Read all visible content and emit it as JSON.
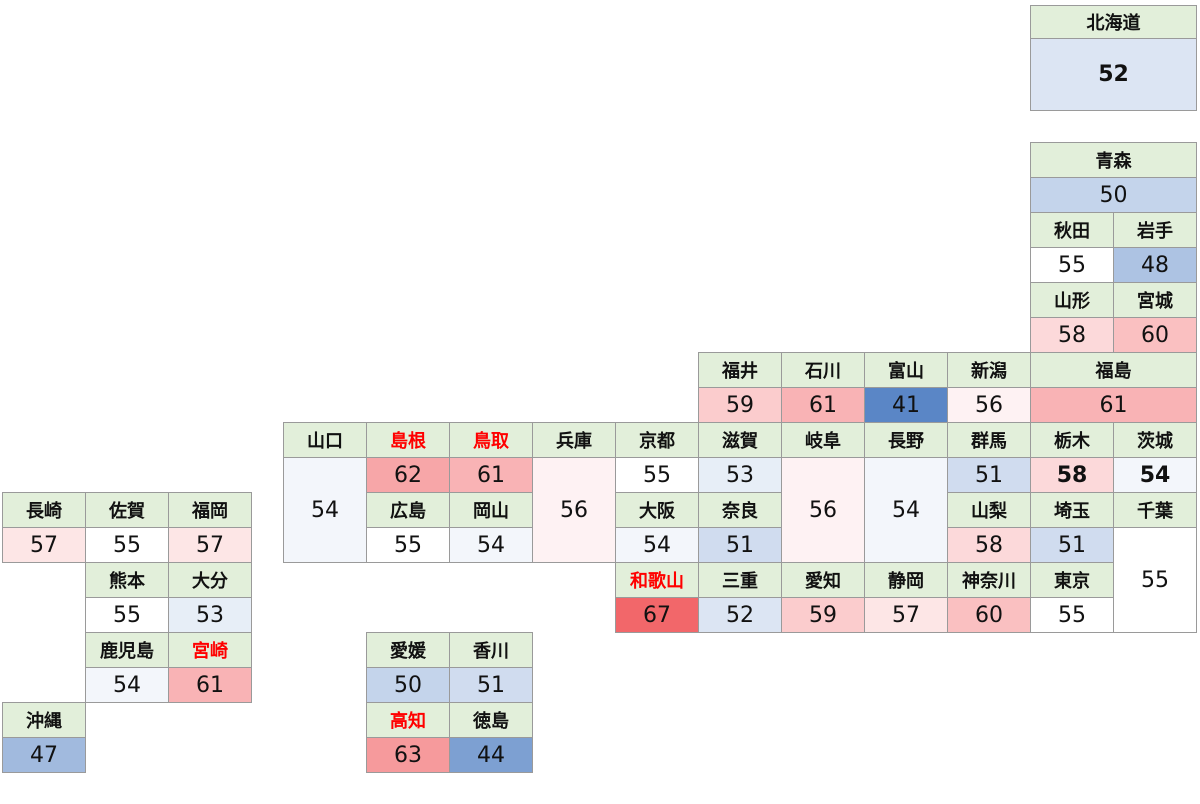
{
  "prefectures": [
    {
      "name": "北海道",
      "value": 52,
      "bold": true
    },
    {
      "name": "青森",
      "value": 50
    },
    {
      "name": "秋田",
      "value": 55
    },
    {
      "name": "岩手",
      "value": 48
    },
    {
      "name": "山形",
      "value": 58
    },
    {
      "name": "宮城",
      "value": 60
    },
    {
      "name": "福井",
      "value": 59
    },
    {
      "name": "石川",
      "value": 61
    },
    {
      "name": "富山",
      "value": 41
    },
    {
      "name": "新潟",
      "value": 56
    },
    {
      "name": "福島",
      "value": 61
    },
    {
      "name": "山口",
      "value": 54
    },
    {
      "name": "島根",
      "value": 62,
      "highlight": true
    },
    {
      "name": "鳥取",
      "value": 61,
      "highlight": true
    },
    {
      "name": "兵庫",
      "value": 56
    },
    {
      "name": "京都",
      "value": 55
    },
    {
      "name": "滋賀",
      "value": 53
    },
    {
      "name": "岐阜",
      "value": 56
    },
    {
      "name": "長野",
      "value": 54
    },
    {
      "name": "群馬",
      "value": 51
    },
    {
      "name": "栃木",
      "value": 58,
      "bold": true
    },
    {
      "name": "茨城",
      "value": 54,
      "bold": true
    },
    {
      "name": "広島",
      "value": 55
    },
    {
      "name": "岡山",
      "value": 54
    },
    {
      "name": "大阪",
      "value": 54
    },
    {
      "name": "奈良",
      "value": 51
    },
    {
      "name": "山梨",
      "value": 58
    },
    {
      "name": "埼玉",
      "value": 51
    },
    {
      "name": "千葉",
      "value": 55
    },
    {
      "name": "和歌山",
      "value": 67,
      "highlight": true
    },
    {
      "name": "三重",
      "value": 52
    },
    {
      "name": "愛知",
      "value": 59
    },
    {
      "name": "静岡",
      "value": 57
    },
    {
      "name": "神奈川",
      "value": 60
    },
    {
      "name": "東京",
      "value": 55
    },
    {
      "name": "長崎",
      "value": 57
    },
    {
      "name": "佐賀",
      "value": 55
    },
    {
      "name": "福岡",
      "value": 57
    },
    {
      "name": "熊本",
      "value": 55
    },
    {
      "name": "大分",
      "value": 53
    },
    {
      "name": "鹿児島",
      "value": 54
    },
    {
      "name": "宮崎",
      "value": 61,
      "highlight": true
    },
    {
      "name": "沖縄",
      "value": 47
    },
    {
      "name": "愛媛",
      "value": 50
    },
    {
      "name": "香川",
      "value": 51
    },
    {
      "name": "高知",
      "value": 63,
      "highlight": true
    },
    {
      "name": "徳島",
      "value": 44
    }
  ],
  "colors": {
    "low": "#5a86c6",
    "mid": "#ffffff",
    "high": "#f2676a",
    "header": "#e2efda",
    "highlight_text": "#ff0000"
  }
}
